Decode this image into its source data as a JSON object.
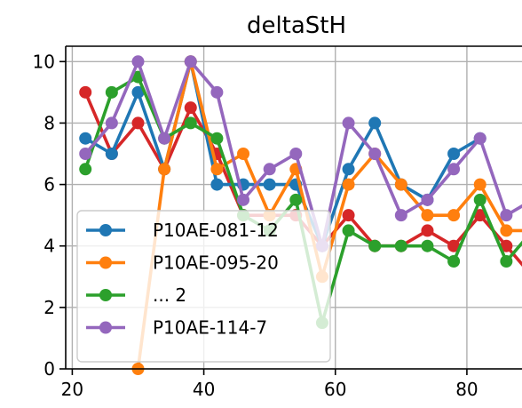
{
  "chart_data": {
    "type": "line",
    "title": "deltaStH",
    "xlabel": "",
    "ylabel": "",
    "xlim": [
      19,
      90
    ],
    "ylim": [
      0,
      10.5
    ],
    "x_ticks": [
      20,
      40,
      60,
      80
    ],
    "y_ticks": [
      0,
      2,
      4,
      6,
      8,
      10
    ],
    "grid": true,
    "legend": {
      "location": "lower-left"
    },
    "x": [
      22,
      26,
      30,
      34,
      38,
      42,
      46,
      50,
      54,
      58,
      62,
      66,
      70,
      74,
      78,
      82,
      86,
      90
    ],
    "series": [
      {
        "label": "",
        "color": "#d62728",
        "in_legend": false,
        "values": [
          9,
          7,
          8,
          6.5,
          8.5,
          7,
          5,
          5,
          5,
          4,
          5,
          4,
          4,
          4.5,
          4,
          5,
          4,
          3
        ]
      },
      {
        "label": "P10AE-081-12",
        "color": "#1f77b4",
        "in_legend": true,
        "values": [
          7.5,
          7,
          9,
          6.5,
          10,
          6,
          6,
          6,
          6,
          4,
          6.5,
          8,
          6,
          5.5,
          7,
          7.5,
          null,
          null
        ]
      },
      {
        "label": "P10AE-095-20",
        "color": "#ff7f0e",
        "in_legend": true,
        "values": [
          null,
          null,
          0,
          6.5,
          10,
          6.5,
          7,
          5,
          6.5,
          3,
          6,
          7,
          6,
          5,
          5,
          6,
          4.5,
          4.5
        ]
      },
      {
        "label": "... 2",
        "color": "#2ca02c",
        "in_legend": true,
        "values": [
          6.5,
          9,
          9.5,
          7.5,
          8,
          7.5,
          5,
          4.5,
          5.5,
          1.5,
          4.5,
          4,
          4,
          4,
          3.5,
          5.5,
          3.5,
          4.5
        ]
      },
      {
        "label": "P10AE-114-7",
        "color": "#9467bd",
        "in_legend": true,
        "values": [
          7,
          8,
          10,
          7.5,
          10,
          9,
          5.5,
          6.5,
          7,
          4,
          8,
          7,
          5,
          5.5,
          6.5,
          7.5,
          5,
          5.5
        ]
      }
    ]
  }
}
